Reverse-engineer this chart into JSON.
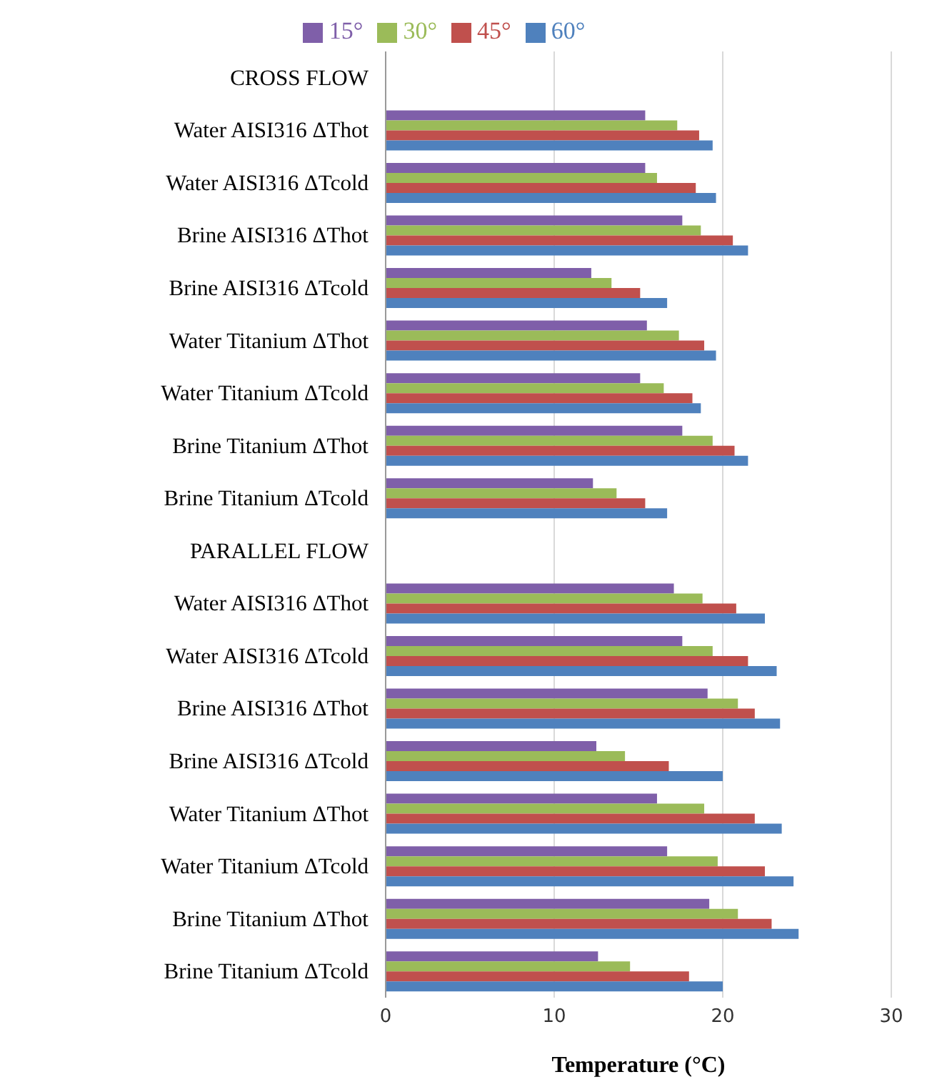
{
  "chart_data": {
    "type": "bar",
    "orientation": "horizontal",
    "xlabel": "Temperature (°C)",
    "categories": [
      "CROSS FLOW",
      "Water AISI316 ΔThot",
      "Water AISI316 ΔTcold",
      "Brine AISI316 ΔThot",
      "Brine AISI316 ΔTcold",
      "Water Titanium ΔThot",
      "Water Titanium ΔTcold",
      "Brine Titanium ΔThot",
      "Brine Titanium ΔTcold",
      "PARALLEL FLOW",
      "Water AISI316 ΔThot",
      "Water AISI316 ΔTcold",
      "Brine AISI316 ΔThot",
      "Brine AISI316 ΔTcold",
      "Water Titanium ΔThot",
      "Water Titanium ΔTcold",
      "Brine Titanium ΔThot",
      "Brine Titanium ΔTcold"
    ],
    "series": [
      {
        "name": "15°",
        "color": "#7f5fa9",
        "values": [
          null,
          15.4,
          15.4,
          17.6,
          12.2,
          15.5,
          15.1,
          17.6,
          12.3,
          null,
          17.1,
          17.6,
          19.1,
          12.5,
          16.1,
          16.7,
          19.2,
          12.6
        ]
      },
      {
        "name": "30°",
        "color": "#9bbb59",
        "values": [
          null,
          17.3,
          16.1,
          18.7,
          13.4,
          17.4,
          16.5,
          19.4,
          13.7,
          null,
          18.8,
          19.4,
          20.9,
          14.2,
          18.9,
          19.7,
          20.9,
          14.5
        ]
      },
      {
        "name": "45°",
        "color": "#c0504d",
        "values": [
          null,
          18.6,
          18.4,
          20.6,
          15.1,
          18.9,
          18.2,
          20.7,
          15.4,
          null,
          20.8,
          21.5,
          21.9,
          16.8,
          21.9,
          22.5,
          22.9,
          18.0
        ]
      },
      {
        "name": "60°",
        "color": "#4f81bd",
        "values": [
          null,
          19.4,
          19.6,
          21.5,
          16.7,
          19.6,
          18.7,
          21.5,
          16.7,
          null,
          22.5,
          23.2,
          23.4,
          20.0,
          23.5,
          24.2,
          24.5,
          20.0
        ]
      }
    ],
    "xlim": [
      0,
      30
    ],
    "xticks": [
      0,
      10,
      20,
      30
    ],
    "grid": "x",
    "legend": "top"
  }
}
